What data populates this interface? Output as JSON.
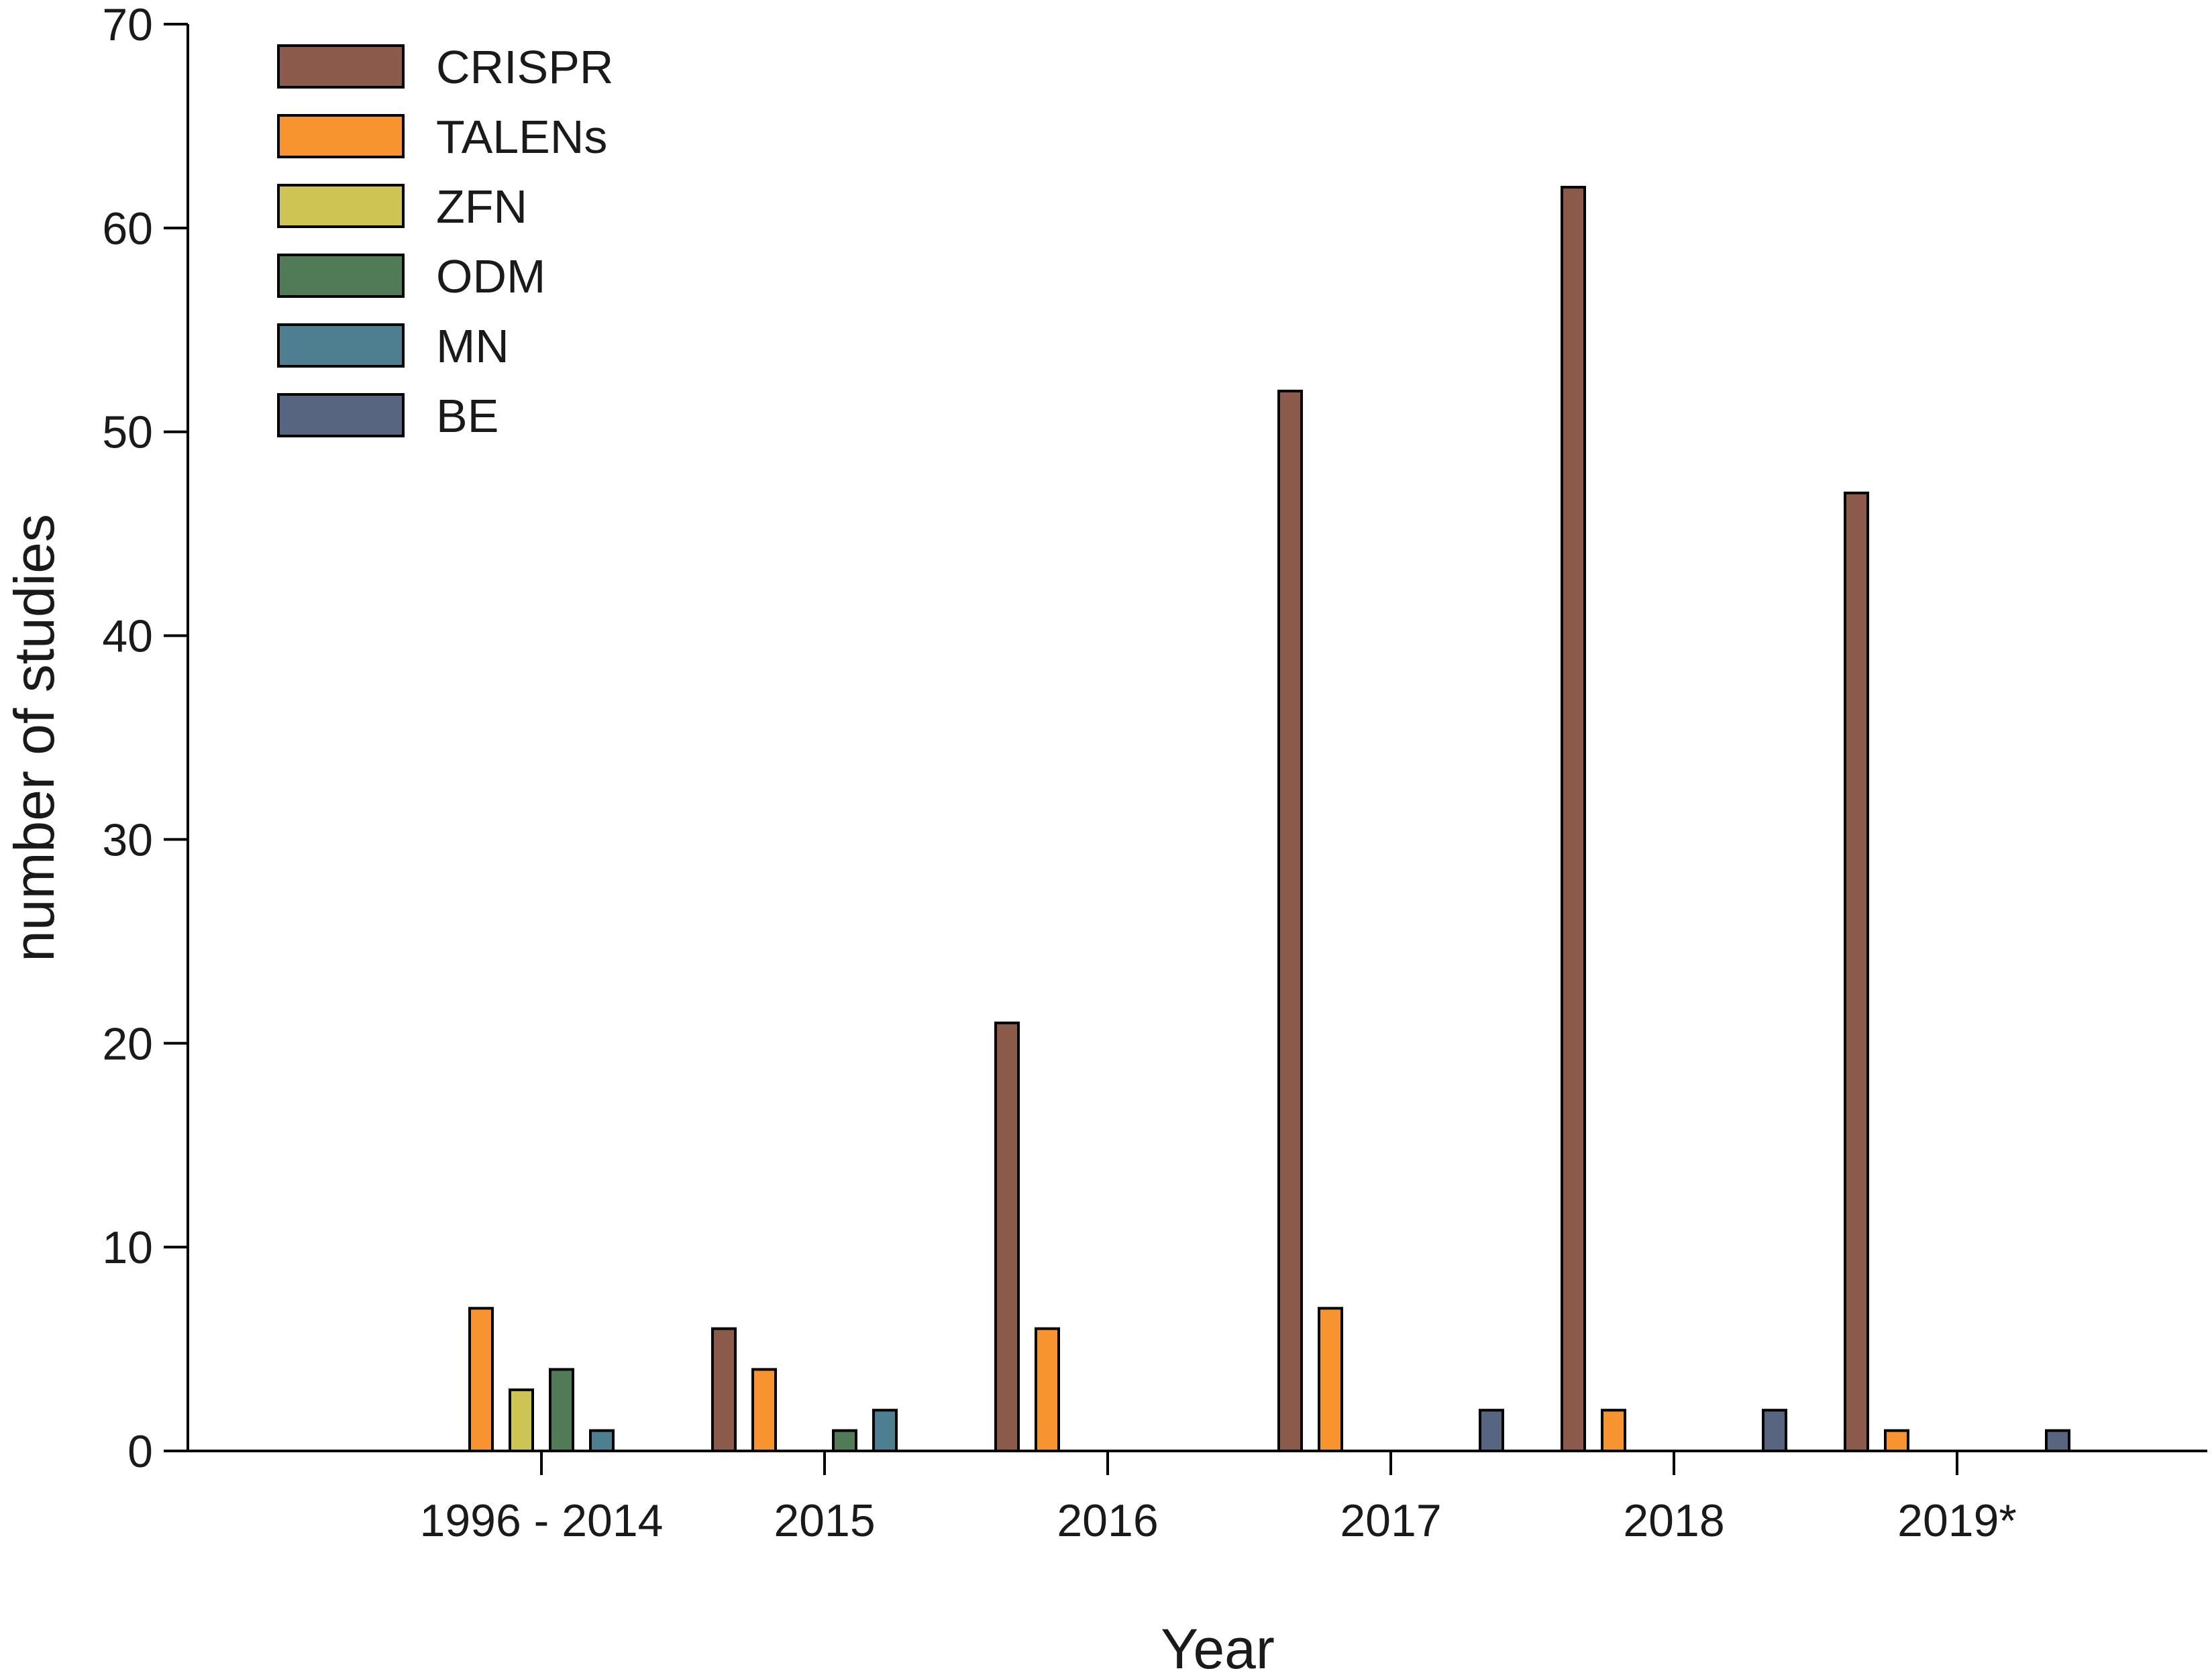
{
  "chart_data": {
    "type": "bar",
    "title": "",
    "xlabel": "Year",
    "ylabel": "number of studies",
    "ylim": [
      0,
      70
    ],
    "yticks": [
      0,
      10,
      20,
      30,
      40,
      50,
      60,
      70
    ],
    "grid": false,
    "legend_position": "top-left",
    "categories": [
      "1996 - 2014",
      "2015",
      "2016",
      "2017",
      "2018",
      "2019*"
    ],
    "series": [
      {
        "name": "CRISPR",
        "color": "#8b5a4a",
        "values": [
          0,
          6,
          21,
          52,
          62,
          47
        ]
      },
      {
        "name": "TALENs",
        "color": "#f7942f",
        "values": [
          7,
          4,
          6,
          7,
          2,
          1
        ]
      },
      {
        "name": "ZFN",
        "color": "#cdc454",
        "values": [
          3,
          0,
          0,
          0,
          0,
          0
        ]
      },
      {
        "name": "ODM",
        "color": "#517a57",
        "values": [
          4,
          1,
          0,
          0,
          0,
          0
        ]
      },
      {
        "name": "MN",
        "color": "#4d7f91",
        "values": [
          1,
          2,
          0,
          0,
          0,
          0
        ]
      },
      {
        "name": "BE",
        "color": "#576581",
        "values": [
          0,
          0,
          0,
          2,
          2,
          1
        ]
      }
    ]
  }
}
